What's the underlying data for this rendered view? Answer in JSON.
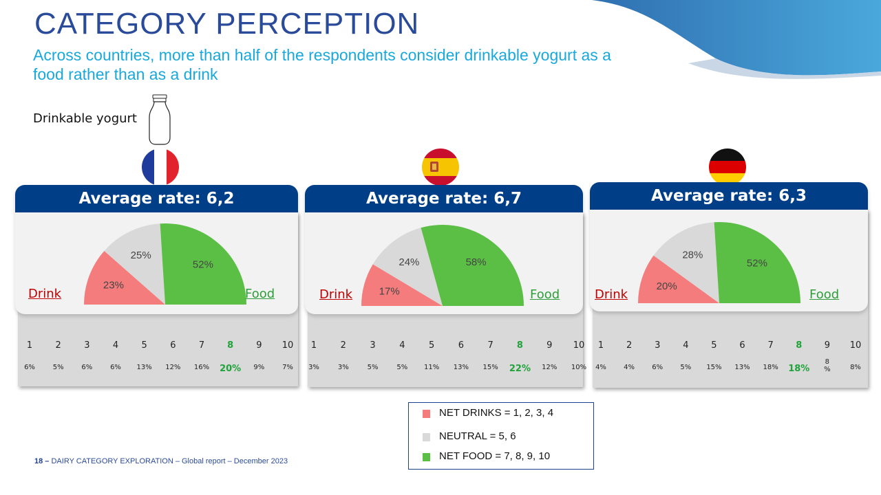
{
  "page": {
    "title": "CATEGORY PERCEPTION",
    "subtitle": "Across countries, more than half of the respondents consider drinkable yogurt as a food rather than as a drink",
    "product_label": "Drinkable yogurt",
    "footer_page": "18 –",
    "footer_text": "DAIRY CATEGORY EXPLORATION – Global report – December 2023"
  },
  "colors": {
    "drink": "#f47c7c",
    "neutral": "#d9d9d9",
    "food": "#5cbf45",
    "header": "#003f87"
  },
  "cards": [
    {
      "header": "Average rate: 6,2",
      "drink_label": "Drink",
      "food_label": "Food",
      "scale": [
        "1",
        "2",
        "3",
        "4",
        "5",
        "6",
        "7",
        "8",
        "9",
        "10"
      ],
      "scale_values": [
        "6%",
        "5%",
        "6%",
        "6%",
        "13%",
        "12%",
        "16%",
        "20%",
        "9%",
        "7%"
      ],
      "highlight_index": 7
    },
    {
      "header": "Average rate: 6,7",
      "drink_label": "Drink",
      "food_label": "Food",
      "scale": [
        "1",
        "2",
        "3",
        "4",
        "5",
        "6",
        "7",
        "8",
        "9",
        "10"
      ],
      "scale_values": [
        "3%",
        "3%",
        "5%",
        "5%",
        "11%",
        "13%",
        "15%",
        "22%",
        "12%",
        "10%"
      ],
      "highlight_index": 7
    },
    {
      "header": "Average rate: 6,3",
      "drink_label": "Drink",
      "food_label": "Food",
      "scale": [
        "1",
        "2",
        "3",
        "4",
        "5",
        "6",
        "7",
        "8",
        "9",
        "10"
      ],
      "scale_values": [
        "4%",
        "4%",
        "6%",
        "5%",
        "15%",
        "13%",
        "18%",
        "18%",
        "8 %",
        "8%"
      ],
      "highlight_index": 7
    }
  ],
  "chart_data": [
    {
      "type": "pie",
      "categories": [
        "NET DRINKS",
        "NEUTRAL",
        "NET FOOD"
      ],
      "values": [
        23,
        25,
        52
      ],
      "data_labels": [
        "23%",
        "25%",
        "52%"
      ]
    },
    {
      "type": "pie",
      "categories": [
        "NET DRINKS",
        "NEUTRAL",
        "NET FOOD"
      ],
      "values": [
        17,
        24,
        58
      ],
      "data_labels": [
        "17%",
        "24%",
        "58%"
      ]
    },
    {
      "type": "pie",
      "categories": [
        "NET DRINKS",
        "NEUTRAL",
        "NET FOOD"
      ],
      "values": [
        20,
        28,
        52
      ],
      "data_labels": [
        "20%",
        "28%",
        "52%"
      ]
    }
  ],
  "legend": [
    {
      "label": "NET DRINKS = 1, 2, 3, 4",
      "color": "#f47c7c"
    },
    {
      "label": "NEUTRAL = 5, 6",
      "color": "#d9d9d9"
    },
    {
      "label": "NET FOOD = 7, 8, 9, 10",
      "color": "#5cbf45"
    }
  ]
}
